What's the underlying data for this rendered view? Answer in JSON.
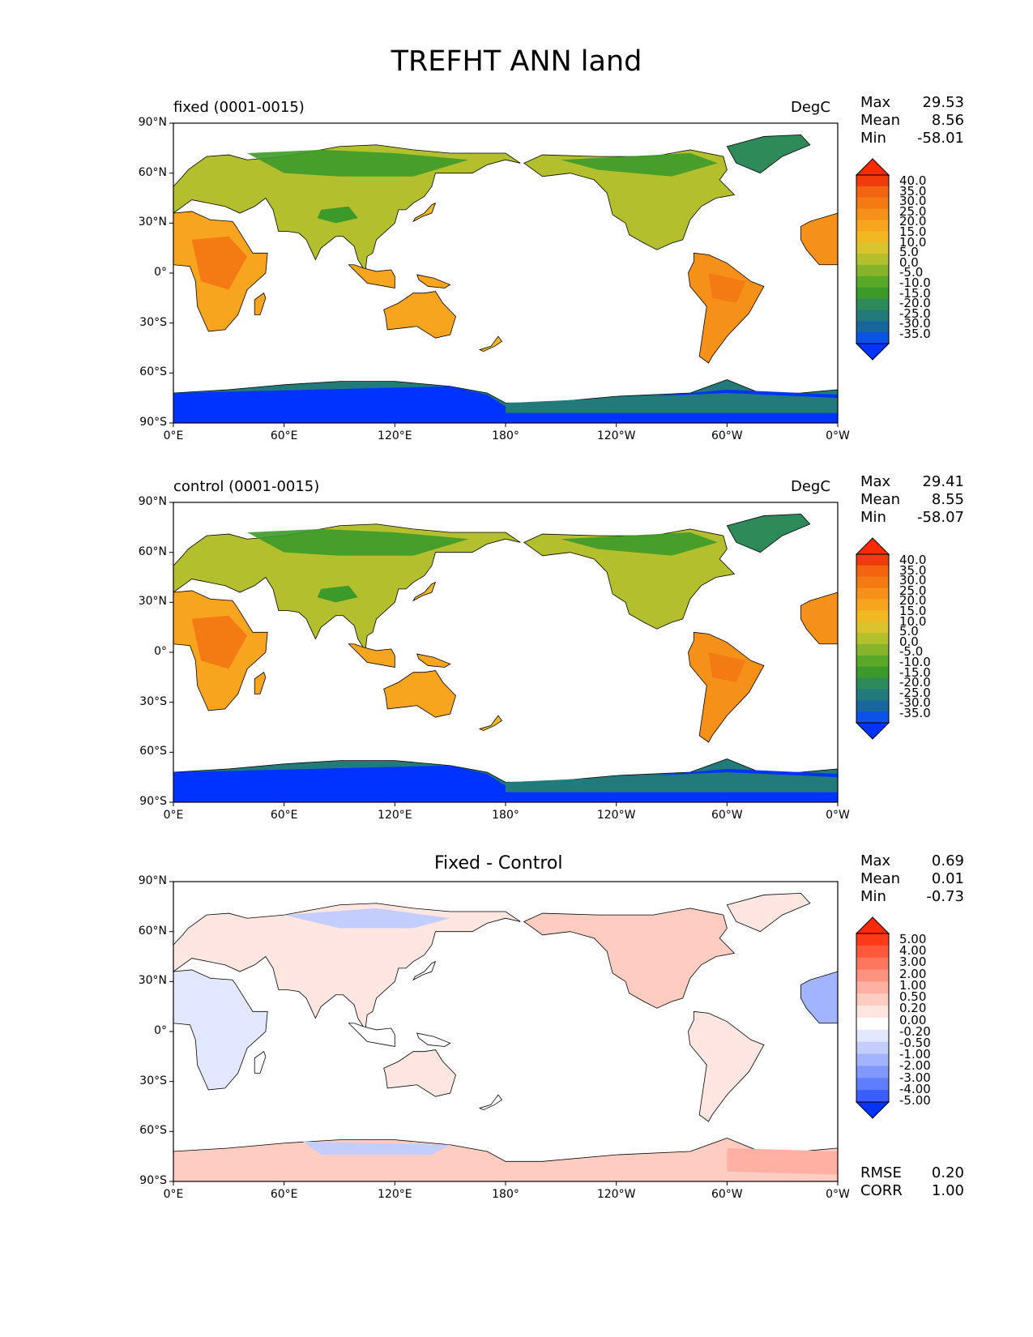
{
  "title": "TREFHT ANN land",
  "x_ticks": [
    "0°E",
    "60°E",
    "120°E",
    "180°",
    "120°W",
    "60°W",
    "0°W"
  ],
  "y_ticks": [
    "90°N",
    "60°N",
    "30°N",
    "0°",
    "30°S",
    "60°S",
    "90°S"
  ],
  "panels": [
    {
      "label": "fixed (0001-0015)",
      "units": "DegC",
      "stats": [
        {
          "name": "Max",
          "value": "29.53"
        },
        {
          "name": "Mean",
          "value": "8.56"
        },
        {
          "name": "Min",
          "value": "-58.01"
        }
      ],
      "colorbar": [
        "40.0",
        "35.0",
        "30.0",
        "25.0",
        "20.0",
        "15.0",
        "10.0",
        "5.0",
        "0.0",
        "-5.0",
        "-10.0",
        "-15.0",
        "-20.0",
        "-25.0",
        "-30.0",
        "-35.0"
      ]
    },
    {
      "label": "control (0001-0015)",
      "units": "DegC",
      "stats": [
        {
          "name": "Max",
          "value": "29.41"
        },
        {
          "name": "Mean",
          "value": "8.55"
        },
        {
          "name": "Min",
          "value": "-58.07"
        }
      ],
      "colorbar": [
        "40.0",
        "35.0",
        "30.0",
        "25.0",
        "20.0",
        "15.0",
        "10.0",
        "5.0",
        "0.0",
        "-5.0",
        "-10.0",
        "-15.0",
        "-20.0",
        "-25.0",
        "-30.0",
        "-35.0"
      ]
    },
    {
      "title": "Fixed - Control",
      "stats": [
        {
          "name": "Max",
          "value": "0.69"
        },
        {
          "name": "Mean",
          "value": "0.01"
        },
        {
          "name": "Min",
          "value": "-0.73"
        }
      ],
      "colorbar": [
        "5.00",
        "4.00",
        "3.00",
        "2.00",
        "1.00",
        "0.50",
        "0.20",
        "0.00",
        "-0.20",
        "-0.50",
        "-1.00",
        "-2.00",
        "-3.00",
        "-4.00",
        "-5.00"
      ],
      "extra_stats": [
        {
          "name": "RMSE",
          "value": "0.20"
        },
        {
          "name": "CORR",
          "value": "1.00"
        }
      ]
    }
  ],
  "colors": {
    "temp_scale": [
      "#0033ff",
      "#0a52e8",
      "#17669c",
      "#237a7a",
      "#2f8a5a",
      "#3c9a2a",
      "#5aa828",
      "#86b42a",
      "#b3bf2c",
      "#d9c42e",
      "#f2b824",
      "#f7a41e",
      "#f59018",
      "#f47a14",
      "#f26410",
      "#f03c0c",
      "#ff2a00"
    ],
    "diff_scale": [
      "#0033ff",
      "#3b5cff",
      "#5f7dff",
      "#8199ff",
      "#a3b4ff",
      "#c3ceff",
      "#e2e8ff",
      "#ffffff",
      "#ffe6e0",
      "#ffccc2",
      "#ffb0a2",
      "#ff9380",
      "#ff765e",
      "#ff583b",
      "#ff3a19",
      "#ff2a00"
    ]
  }
}
